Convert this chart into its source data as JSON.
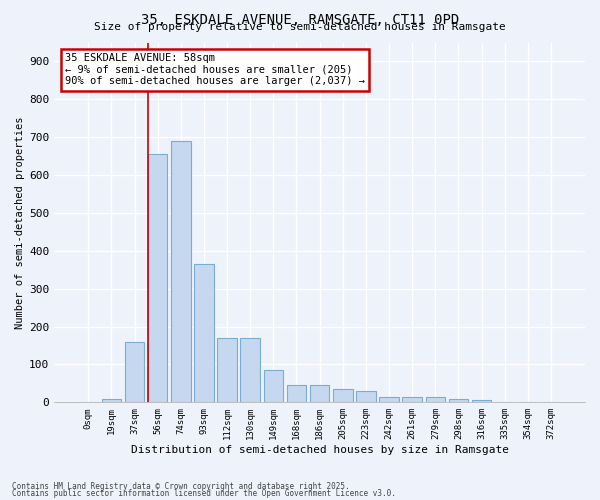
{
  "title1": "35, ESKDALE AVENUE, RAMSGATE, CT11 0PD",
  "title2": "Size of property relative to semi-detached houses in Ramsgate",
  "xlabel": "Distribution of semi-detached houses by size in Ramsgate",
  "ylabel": "Number of semi-detached properties",
  "categories": [
    "0sqm",
    "19sqm",
    "37sqm",
    "56sqm",
    "74sqm",
    "93sqm",
    "112sqm",
    "130sqm",
    "149sqm",
    "168sqm",
    "186sqm",
    "205sqm",
    "223sqm",
    "242sqm",
    "261sqm",
    "279sqm",
    "298sqm",
    "316sqm",
    "335sqm",
    "354sqm",
    "372sqm"
  ],
  "values": [
    0,
    10,
    160,
    655,
    690,
    365,
    170,
    170,
    85,
    47,
    47,
    35,
    30,
    15,
    13,
    13,
    10,
    7,
    0,
    0,
    0
  ],
  "bar_color": "#c5d8f0",
  "bar_edge_color": "#7aadd4",
  "annotation_text": "35 ESKDALE AVENUE: 58sqm\n← 9% of semi-detached houses are smaller (205)\n90% of semi-detached houses are larger (2,037) →",
  "annotation_box_color": "#ffffff",
  "annotation_box_edge": "#cc0000",
  "ylim": [
    0,
    950
  ],
  "yticks": [
    0,
    100,
    200,
    300,
    400,
    500,
    600,
    700,
    800,
    900
  ],
  "background_color": "#eef2fb",
  "grid_color": "#ffffff",
  "vline_color": "#cc0000",
  "footer1": "Contains HM Land Registry data © Crown copyright and database right 2025.",
  "footer2": "Contains public sector information licensed under the Open Government Licence v3.0."
}
